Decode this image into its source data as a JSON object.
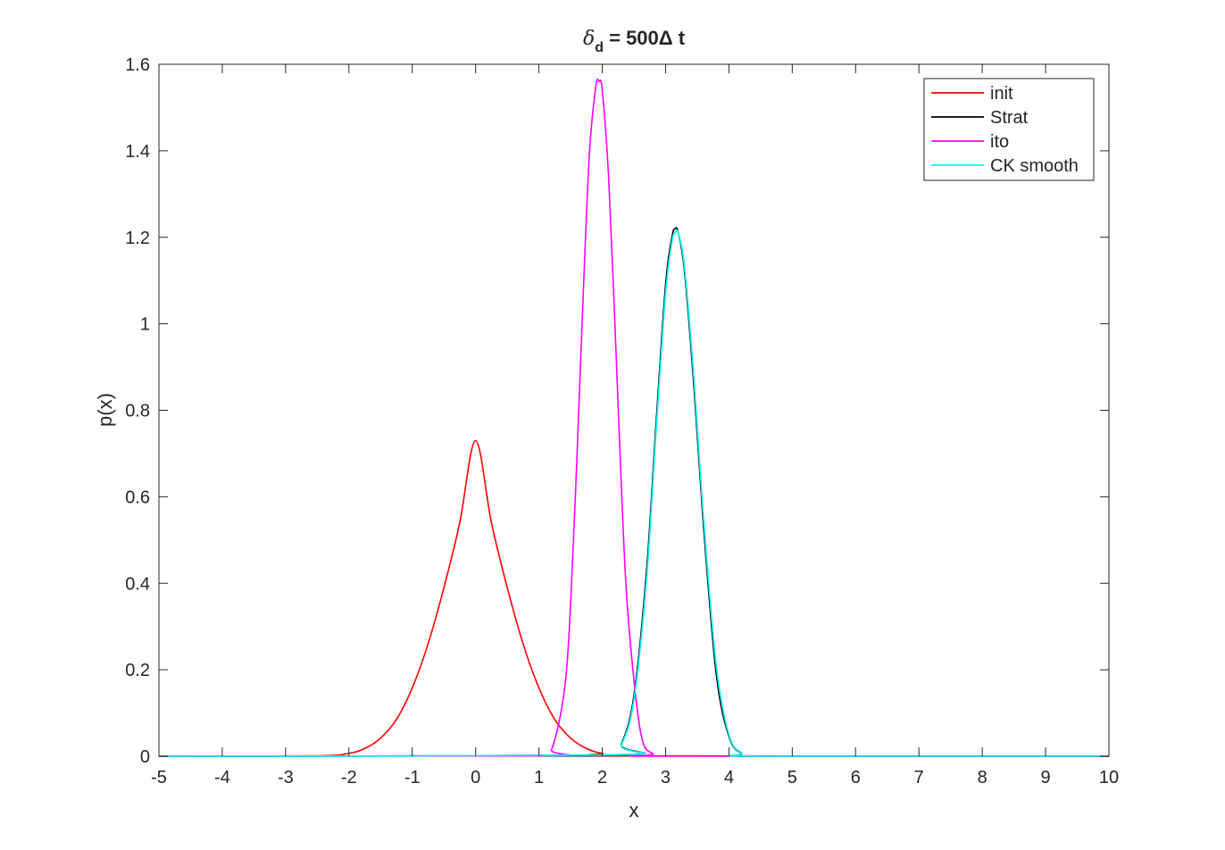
{
  "chart_data": {
    "type": "line",
    "title": {
      "symbol": "δ",
      "subscript": "d",
      "rest": " = 500Δ t"
    },
    "xlabel": "x",
    "ylabel": "p(x)",
    "xlim": [
      -5,
      10
    ],
    "ylim": [
      0,
      1.6
    ],
    "xticks": [
      -5,
      -4,
      -3,
      -2,
      -1,
      0,
      1,
      2,
      3,
      4,
      5,
      6,
      7,
      8,
      9,
      10
    ],
    "xtick_labels": [
      "-5",
      "-4",
      "-3",
      "-2",
      "-1",
      "0",
      "1",
      "2",
      "3",
      "4",
      "5",
      "6",
      "7",
      "8",
      "9",
      "10"
    ],
    "yticks": [
      0,
      0.2,
      0.4,
      0.6,
      0.8,
      1,
      1.2,
      1.4,
      1.6
    ],
    "ytick_labels": [
      "0",
      "0.2",
      "0.4",
      "0.6",
      "0.8",
      "1",
      "1.2",
      "1.4",
      "1.6"
    ],
    "grid": false,
    "legend_position": "top-right",
    "series": [
      {
        "name": "init",
        "color": "#ff0000",
        "x": [
          -5,
          -2.5,
          -2,
          -1.75,
          -1.5,
          -1.25,
          -1,
          -0.75,
          -0.5,
          -0.25,
          0,
          0.25,
          0.5,
          0.75,
          1,
          1.25,
          1.5,
          1.75,
          2,
          2.5,
          10
        ],
        "y": [
          0,
          0.001,
          0.007,
          0.018,
          0.042,
          0.085,
          0.158,
          0.26,
          0.39,
          0.54,
          0.73,
          0.54,
          0.39,
          0.26,
          0.158,
          0.085,
          0.042,
          0.018,
          0.007,
          0.001,
          0
        ]
      },
      {
        "name": "Strat",
        "color": "#000000",
        "x": [
          -5,
          2.1,
          2.3,
          2.5,
          2.7,
          2.85,
          3,
          3.1,
          3.15,
          3.2,
          3.3,
          3.45,
          3.6,
          3.8,
          4,
          4.2,
          4.5,
          10
        ],
        "y": [
          0,
          0.003,
          0.028,
          0.14,
          0.43,
          0.77,
          1.09,
          1.2,
          1.22,
          1.21,
          1.12,
          0.85,
          0.53,
          0.19,
          0.046,
          0.007,
          0,
          0
        ]
      },
      {
        "name": "ito",
        "color": "#ff00ff",
        "x": [
          -5,
          1,
          1.2,
          1.4,
          1.5,
          1.6,
          1.7,
          1.8,
          1.9,
          1.95,
          2,
          2.1,
          2.2,
          2.3,
          2.4,
          2.6,
          2.8,
          3,
          10
        ],
        "y": [
          0,
          0.001,
          0.016,
          0.15,
          0.35,
          0.69,
          1.07,
          1.4,
          1.55,
          1.56,
          1.54,
          1.34,
          1.0,
          0.63,
          0.34,
          0.06,
          0.005,
          0,
          0
        ]
      },
      {
        "name": "CK smooth",
        "color": "#00ffff",
        "x": [
          -5,
          2.1,
          2.3,
          2.5,
          2.7,
          2.85,
          3,
          3.1,
          3.15,
          3.2,
          3.3,
          3.45,
          3.6,
          3.8,
          4,
          4.2,
          4.5,
          10
        ],
        "y": [
          0,
          0.003,
          0.026,
          0.13,
          0.41,
          0.75,
          1.07,
          1.19,
          1.21,
          1.21,
          1.13,
          0.87,
          0.55,
          0.21,
          0.05,
          0.008,
          0,
          0
        ]
      }
    ]
  }
}
